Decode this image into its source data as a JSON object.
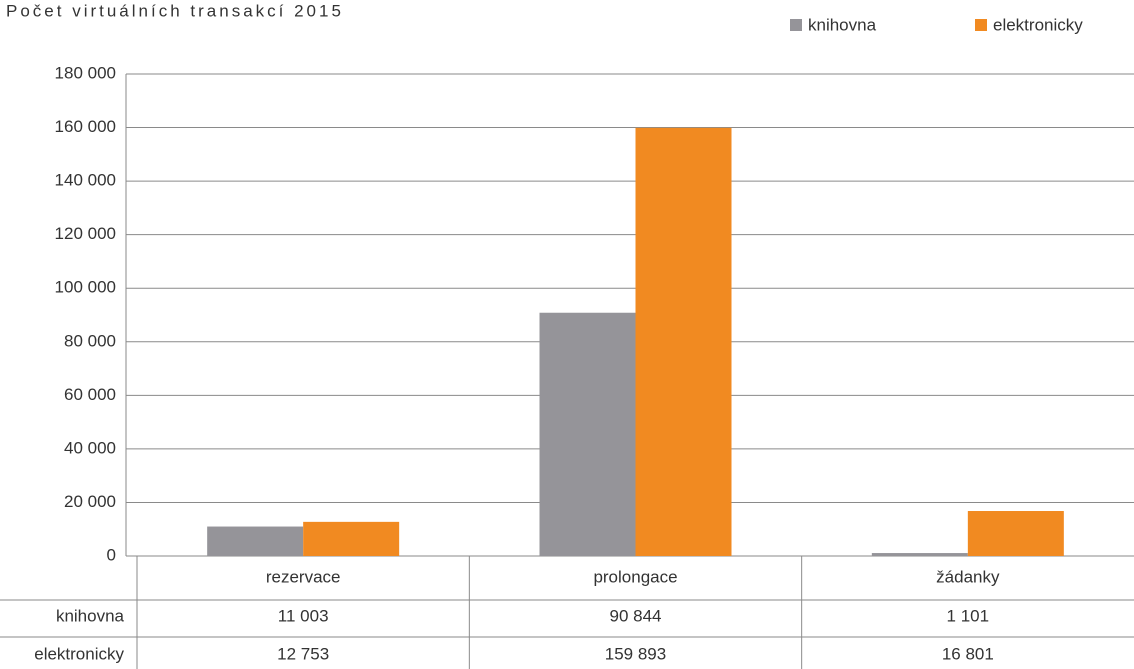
{
  "chart_data": {
    "type": "bar",
    "title": "Počet virtuálních transakcí 2015",
    "categories": [
      "rezervace",
      "prolongace",
      "žádanky"
    ],
    "series": [
      {
        "name": "knihovna",
        "color": "#959499",
        "values": [
          11003,
          90844,
          1101
        ],
        "value_labels": [
          "11 003",
          "90 844",
          "1 101"
        ]
      },
      {
        "name": "elektronicky",
        "color": "#f18a21",
        "values": [
          12753,
          159893,
          16801
        ],
        "value_labels": [
          "12 753",
          "159 893",
          "16 801"
        ]
      }
    ],
    "ylim": [
      0,
      180000
    ],
    "yticks": [
      0,
      {
        "value": 20000,
        "label": "20 000"
      },
      {
        "value": 40000,
        "label": "40 000"
      },
      {
        "value": 60000,
        "label": "60 000"
      },
      {
        "value": 80000,
        "label": "80 000"
      },
      {
        "value": 100000,
        "label": "100 000"
      },
      {
        "value": 120000,
        "label": "120 000"
      },
      {
        "value": 140000,
        "label": "140 000"
      },
      {
        "value": 160000,
        "label": "160 000"
      },
      {
        "value": 180000,
        "label": "180 000"
      }
    ],
    "grid": true,
    "legend": "top-right"
  }
}
